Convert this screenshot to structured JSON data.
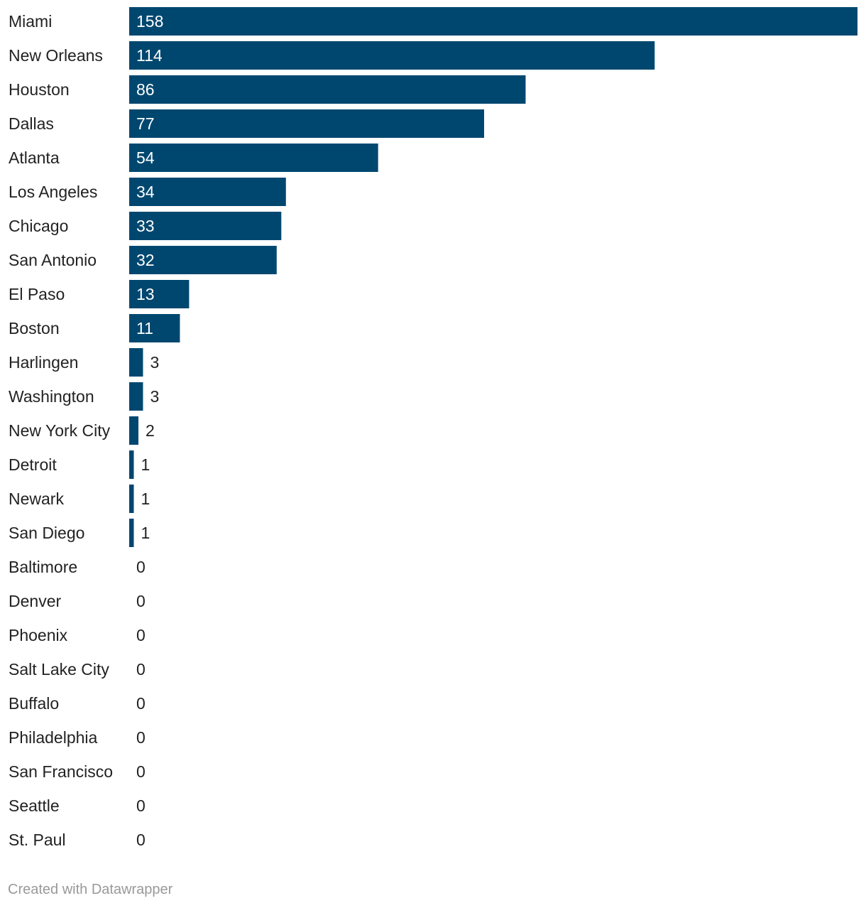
{
  "chart_data": {
    "type": "bar",
    "orientation": "horizontal",
    "categories": [
      "Miami",
      "New Orleans",
      "Houston",
      "Dallas",
      "Atlanta",
      "Los Angeles",
      "Chicago",
      "San Antonio",
      "El Paso",
      "Boston",
      "Harlingen",
      "Washington",
      "New York City",
      "Detroit",
      "Newark",
      "San Diego",
      "Baltimore",
      "Denver",
      "Phoenix",
      "Salt Lake City",
      "Buffalo",
      "Philadelphia",
      "San Francisco",
      "Seattle",
      "St. Paul"
    ],
    "values": [
      158,
      114,
      86,
      77,
      54,
      34,
      33,
      32,
      13,
      11,
      3,
      3,
      2,
      1,
      1,
      1,
      0,
      0,
      0,
      0,
      0,
      0,
      0,
      0,
      0
    ],
    "title": "",
    "xlabel": "",
    "ylabel": "",
    "xlim": [
      0,
      158
    ],
    "grid": false,
    "legend": "none",
    "bar_color": "#00476f"
  },
  "footer": {
    "credit": "Created with Datawrapper"
  }
}
